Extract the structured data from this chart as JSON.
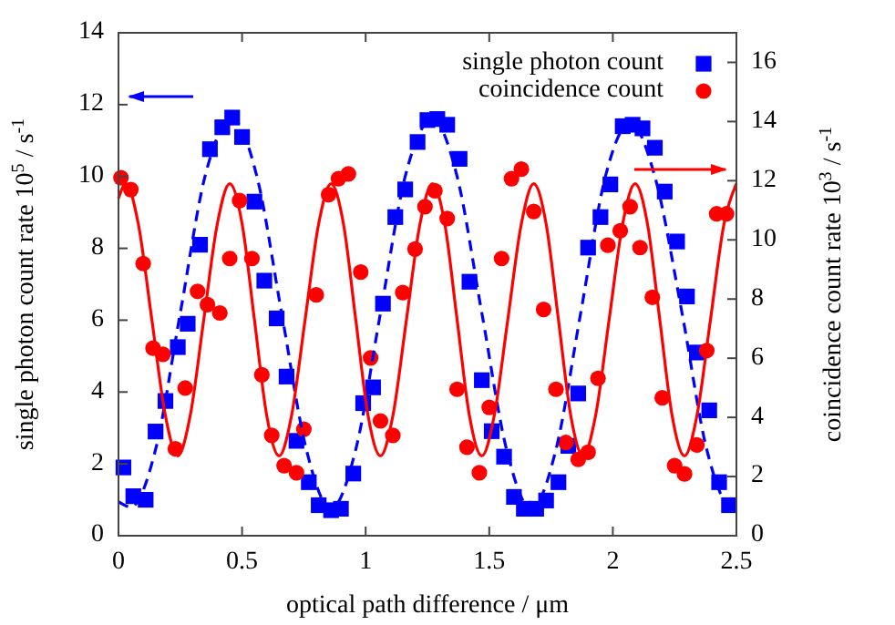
{
  "chart_data": {
    "type": "scatter",
    "xlabel": "optical path difference / μm",
    "ylabel": "single photon count rate 10$^{5}$ / s$^{-1}$",
    "y2label": "coincidence count rate 10$^{3}$ / s$^{-1}$",
    "xlim": [
      0,
      2.5
    ],
    "xticks": [
      0,
      0.5,
      1,
      1.5,
      2,
      2.5
    ],
    "ylim": [
      0,
      14
    ],
    "yticks": [
      0,
      2,
      4,
      6,
      8,
      10,
      12,
      14
    ],
    "y2lim": [
      0,
      17
    ],
    "y2ticks": [
      0,
      2,
      4,
      6,
      8,
      10,
      12,
      14,
      16
    ],
    "grid": false,
    "legend": "top right",
    "series": [
      {
        "name": "single photon count",
        "type": "scatter",
        "marker": "square",
        "color": "#0000ff",
        "axis": "y",
        "x": [
          0.02,
          0.06,
          0.11,
          0.15,
          0.19,
          0.24,
          0.28,
          0.33,
          0.37,
          0.42,
          0.46,
          0.5,
          0.55,
          0.59,
          0.64,
          0.68,
          0.72,
          0.77,
          0.81,
          0.86,
          0.9,
          0.95,
          0.99,
          1.03,
          1.07,
          1.12,
          1.16,
          1.21,
          1.25,
          1.29,
          1.33,
          1.38,
          1.42,
          1.47,
          1.51,
          1.56,
          1.6,
          1.64,
          1.69,
          1.73,
          1.78,
          1.82,
          1.86,
          1.9,
          1.95,
          1.99,
          2.04,
          2.08,
          2.12,
          2.17,
          2.21,
          2.26,
          2.3,
          2.34,
          2.39,
          2.43,
          2.47
        ],
        "values": [
          1.9,
          1.1,
          1.0,
          2.9,
          3.75,
          5.25,
          5.9,
          8.1,
          10.76,
          11.37,
          11.64,
          11.1,
          9.3,
          7.1,
          6.05,
          4.43,
          2.64,
          1.49,
          0.85,
          0.71,
          0.75,
          1.73,
          3.69,
          4.13,
          6.46,
          8.87,
          9.64,
          10.96,
          11.57,
          11.6,
          11.44,
          10.49,
          7.07,
          4.33,
          2.91,
          2.2,
          1.08,
          0.75,
          0.75,
          0.98,
          1.49,
          2.5,
          3.96,
          8.02,
          8.87,
          9.78,
          11.4,
          11.44,
          11.34,
          10.8,
          9.58,
          8.19,
          6.66,
          5.1,
          3.49,
          1.49,
          0.85
        ]
      },
      {
        "name": "coincidence count",
        "type": "scatter",
        "marker": "circle",
        "color": "#ff0000",
        "axis": "y2",
        "x": [
          0.01,
          0.05,
          0.1,
          0.14,
          0.18,
          0.23,
          0.27,
          0.32,
          0.36,
          0.41,
          0.45,
          0.49,
          0.54,
          0.58,
          0.62,
          0.67,
          0.72,
          0.75,
          0.8,
          0.85,
          0.89,
          0.93,
          0.98,
          1.02,
          1.06,
          1.11,
          1.15,
          1.2,
          1.24,
          1.28,
          1.33,
          1.37,
          1.41,
          1.46,
          1.5,
          1.55,
          1.59,
          1.63,
          1.68,
          1.72,
          1.77,
          1.81,
          1.86,
          1.9,
          1.94,
          1.98,
          2.03,
          2.07,
          2.11,
          2.16,
          2.2,
          2.25,
          2.29,
          2.34,
          2.38,
          2.42,
          2.46
        ],
        "values": [
          12.1,
          11.7,
          9.2,
          6.34,
          6.13,
          2.94,
          4.99,
          8.26,
          7.81,
          7.53,
          9.37,
          11.33,
          9.37,
          5.44,
          3.39,
          2.37,
          2.13,
          3.6,
          8.14,
          11.53,
          12.07,
          12.23,
          8.91,
          6.01,
          3.88,
          3.39,
          8.22,
          9.69,
          11.12,
          11.66,
          10.72,
          4.95,
          2.99,
          2.13,
          4.34,
          9.37,
          12.07,
          12.39,
          10.96,
          7.65,
          4.95,
          3.15,
          2.58,
          2.82,
          5.32,
          9.82,
          10.31,
          11.12,
          9.74,
          8.06,
          4.66,
          2.37,
          2.09,
          3.07,
          6.26,
          10.88,
          10.88
        ]
      },
      {
        "type": "line",
        "line_style": "dashed",
        "marker": "none",
        "color": "#0000ff",
        "axis": "y",
        "x": [
          0,
          0.05,
          0.15,
          0.25,
          0.35,
          0.46,
          0.56,
          0.66,
          0.76,
          0.86,
          0.96,
          1.06,
          1.16,
          1.27,
          1.37,
          1.47,
          1.57,
          1.67,
          1.77,
          1.87,
          1.97,
          2.07,
          2.17,
          2.28,
          2.38,
          2.48,
          2.5
        ],
        "values": [
          0.95,
          0.8,
          2.4,
          6.2,
          10.0,
          11.6,
          10.0,
          6.2,
          2.4,
          0.75,
          2.4,
          6.2,
          10.0,
          11.6,
          10.0,
          6.2,
          2.4,
          0.75,
          2.4,
          6.2,
          10.0,
          11.5,
          10.0,
          6.2,
          2.4,
          0.8,
          0.85
        ]
      },
      {
        "type": "line",
        "line_style": "solid",
        "marker": "none",
        "color": "#ff0000",
        "axis": "y2",
        "x": [
          0,
          0.03,
          0.08,
          0.135,
          0.19,
          0.24,
          0.29,
          0.345,
          0.4,
          0.45,
          0.5,
          0.55,
          0.6,
          0.65,
          0.7,
          0.755,
          0.81,
          0.86,
          0.91,
          0.96,
          1.01,
          1.06,
          1.11,
          1.165,
          1.22,
          1.27,
          1.32,
          1.37,
          1.42,
          1.47,
          1.52,
          1.575,
          1.63,
          1.68,
          1.73,
          1.78,
          1.83,
          1.88,
          1.93,
          1.985,
          2.04,
          2.09,
          2.14,
          2.19,
          2.24,
          2.29,
          2.34,
          2.395,
          2.45,
          2.5
        ],
        "values": [
          11.4,
          11.9,
          10.55,
          7.3,
          4.05,
          2.7,
          4.05,
          7.3,
          10.55,
          11.9,
          10.55,
          7.3,
          4.05,
          2.7,
          4.05,
          7.3,
          10.55,
          11.9,
          10.55,
          7.3,
          4.05,
          2.7,
          4.05,
          7.3,
          10.55,
          11.9,
          10.55,
          7.3,
          4.05,
          2.7,
          4.05,
          7.3,
          10.55,
          11.9,
          10.55,
          7.3,
          4.05,
          2.7,
          4.05,
          7.3,
          10.55,
          11.9,
          10.55,
          7.3,
          4.05,
          2.7,
          4.05,
          7.3,
          10.55,
          11.9
        ]
      }
    ]
  }
}
